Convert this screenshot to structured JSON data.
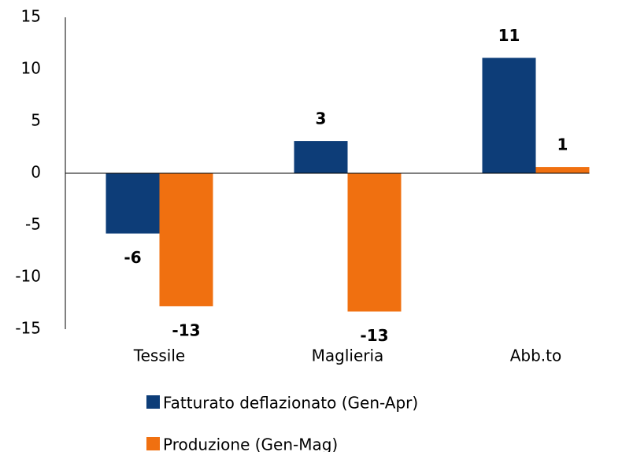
{
  "chart_data": {
    "type": "bar",
    "categories": [
      "Tessile",
      "Maglieria",
      "Abb.to"
    ],
    "series": [
      {
        "name": "Fatturato deflazionato (Gen-Apr)",
        "color": "#0d3d78",
        "values": [
          -5.8,
          3.1,
          11.1
        ],
        "value_labels": [
          "-6",
          "3",
          "11"
        ]
      },
      {
        "name": "Produzione (Gen-Mag)",
        "color": "#f07010",
        "values": [
          -12.8,
          -13.3,
          0.6
        ],
        "value_labels": [
          "-13",
          "-13",
          "1"
        ]
      }
    ],
    "ylim": [
      -15,
      15
    ],
    "yticks": [
      -15,
      -10,
      -5,
      0,
      5,
      10,
      15
    ],
    "grid": false,
    "legend": "bottom"
  }
}
